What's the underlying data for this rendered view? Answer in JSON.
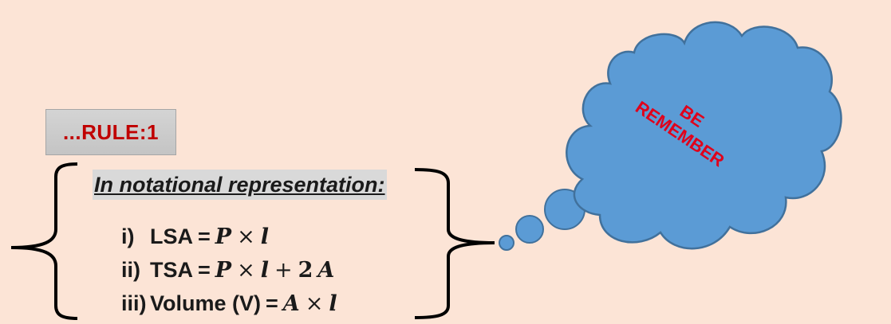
{
  "rule": {
    "label": "...RULE:1"
  },
  "heading": "In notational representation:",
  "formulas": [
    {
      "num": "i)",
      "lhs": "LSA",
      "eq": "=",
      "a": "P",
      "op1": "×",
      "b": "l",
      "op2": "",
      "c": "",
      "d": ""
    },
    {
      "num": "ii)",
      "lhs": "TSA",
      "eq": "=",
      "a": "P",
      "op1": "×",
      "b": "l",
      "op2": "+",
      "c": "2",
      "d": "A"
    },
    {
      "num": "iii)",
      "lhs": "Volume (V)",
      "eq": "=",
      "a": "A",
      "op1": "×",
      "b": "l",
      "op2": "",
      "c": "",
      "d": ""
    }
  ],
  "cloud": {
    "line1": "BE",
    "line2": "REMEMBER"
  },
  "colors": {
    "background": "#fce4d6",
    "cloud_fill": "#5b9bd5",
    "cloud_stroke": "#41719c",
    "accent_text": "#c00000",
    "cloud_text": "#e0001b"
  }
}
